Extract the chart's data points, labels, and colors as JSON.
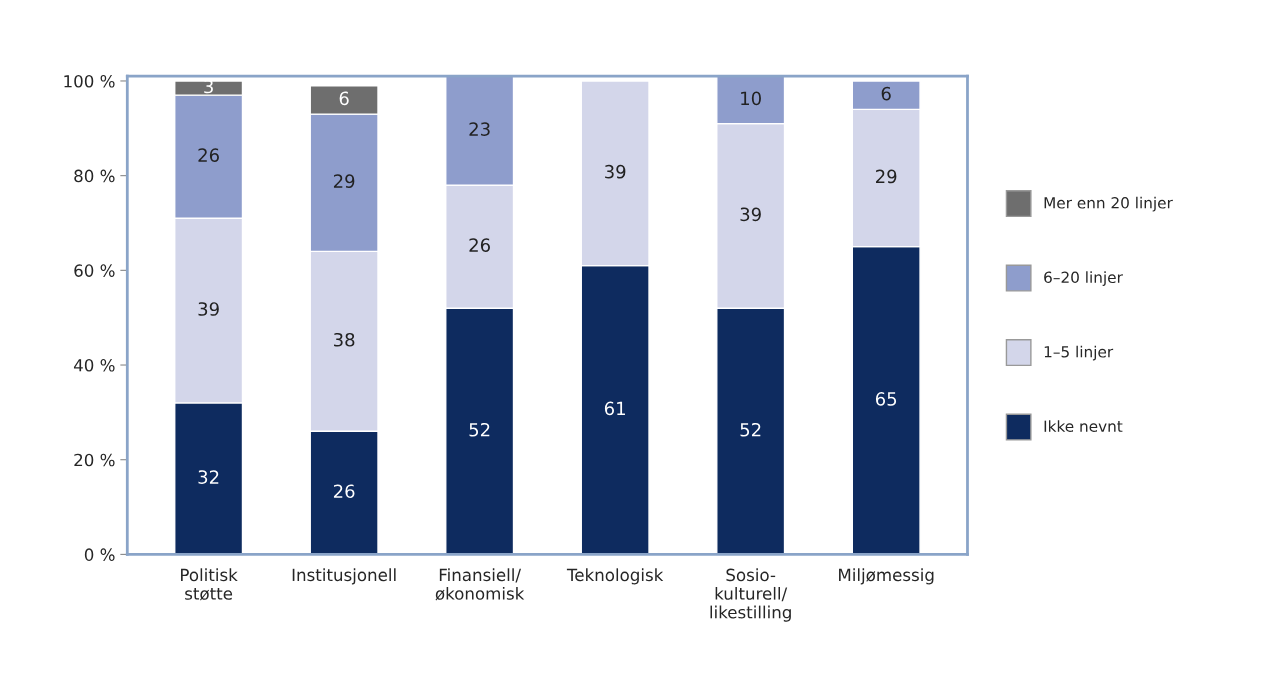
{
  "chart_data": {
    "type": "bar",
    "stacked": true,
    "categories": [
      "Politisk\nstøtte",
      "Institusjonell",
      "Finansiell/\nøkonomisk",
      "Teknologisk",
      "Sosio-\nkulturell/\nlikestilling",
      "Miljømessig"
    ],
    "series": [
      {
        "name": "Ikke nevnt",
        "color": "#0e2b5f",
        "values": [
          32,
          26,
          52,
          61,
          52,
          65
        ]
      },
      {
        "name": "1–5 linjer",
        "color": "#d3d6ea",
        "values": [
          39,
          38,
          26,
          39,
          39,
          29
        ]
      },
      {
        "name": "6–20 linjer",
        "color": "#8e9dcc",
        "values": [
          26,
          29,
          23,
          null,
          10,
          6
        ]
      },
      {
        "name": "Mer enn 20 linjer",
        "color": "#6e6e6e",
        "values": [
          3,
          6,
          null,
          null,
          null,
          null
        ]
      }
    ],
    "ylim": [
      0,
      101
    ],
    "yticks": [
      {
        "value": 0,
        "label": "0 %"
      },
      {
        "value": 20,
        "label": "20 %"
      },
      {
        "value": 40,
        "label": "40 %"
      },
      {
        "value": 60,
        "label": "60 %"
      },
      {
        "value": 80,
        "label": "80 %"
      },
      {
        "value": 100,
        "label": "100 %"
      }
    ],
    "data_labels": true,
    "grid": false,
    "legend": "right"
  }
}
